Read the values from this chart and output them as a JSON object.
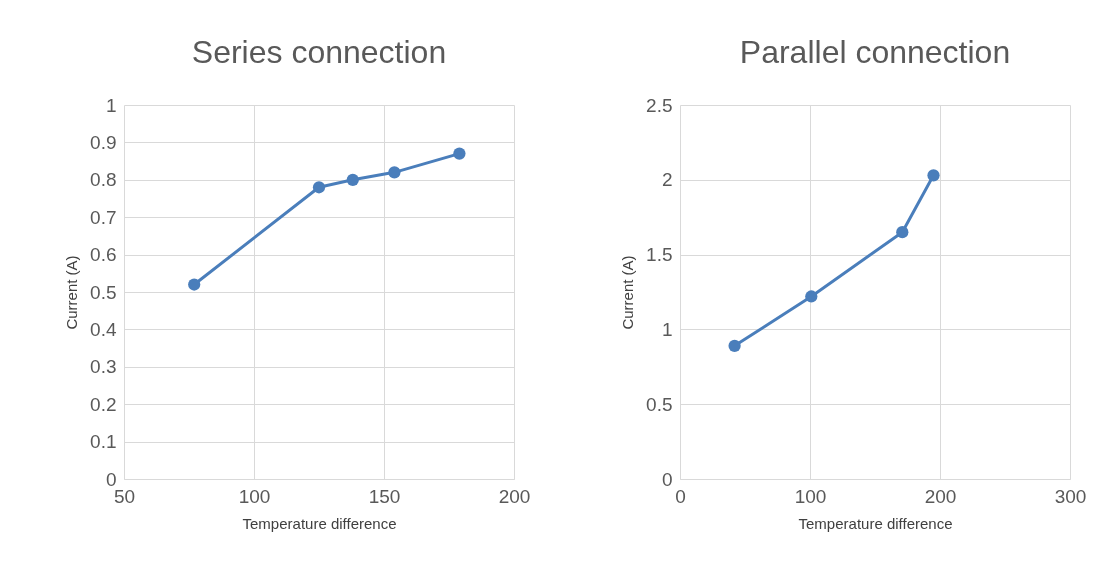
{
  "chart_data": [
    {
      "type": "line",
      "title": "Series connection",
      "xlabel": "Temperature difference",
      "ylabel": "Current (A)",
      "x": [
        77,
        125,
        138,
        154,
        179
      ],
      "series": [
        {
          "color": "#4a7ebb",
          "values": [
            0.52,
            0.78,
            0.8,
            0.82,
            0.87
          ]
        }
      ],
      "xlim": [
        50,
        200
      ],
      "xticks": [
        50,
        100,
        150,
        200
      ],
      "ylim": [
        0,
        1
      ],
      "yticks": [
        0,
        0.1,
        0.2,
        0.3,
        0.4,
        0.5,
        0.6,
        0.7,
        0.8,
        0.9,
        1
      ],
      "grid": true,
      "marker": "circle",
      "line_style": "solid"
    },
    {
      "type": "line",
      "title": "Parallel connection",
      "xlabel": "Temperature difference",
      "ylabel": "Current (A)",
      "x": [
        42,
        101,
        171,
        195
      ],
      "series": [
        {
          "color": "#4a7ebb",
          "values": [
            0.89,
            1.22,
            1.65,
            2.03
          ]
        }
      ],
      "xlim": [
        0,
        300
      ],
      "xticks": [
        0,
        100,
        200,
        300
      ],
      "ylim": [
        0,
        2.5
      ],
      "yticks": [
        0,
        0.5,
        1,
        1.5,
        2,
        2.5
      ],
      "grid": true,
      "marker": "circle",
      "line_style": "solid"
    }
  ]
}
